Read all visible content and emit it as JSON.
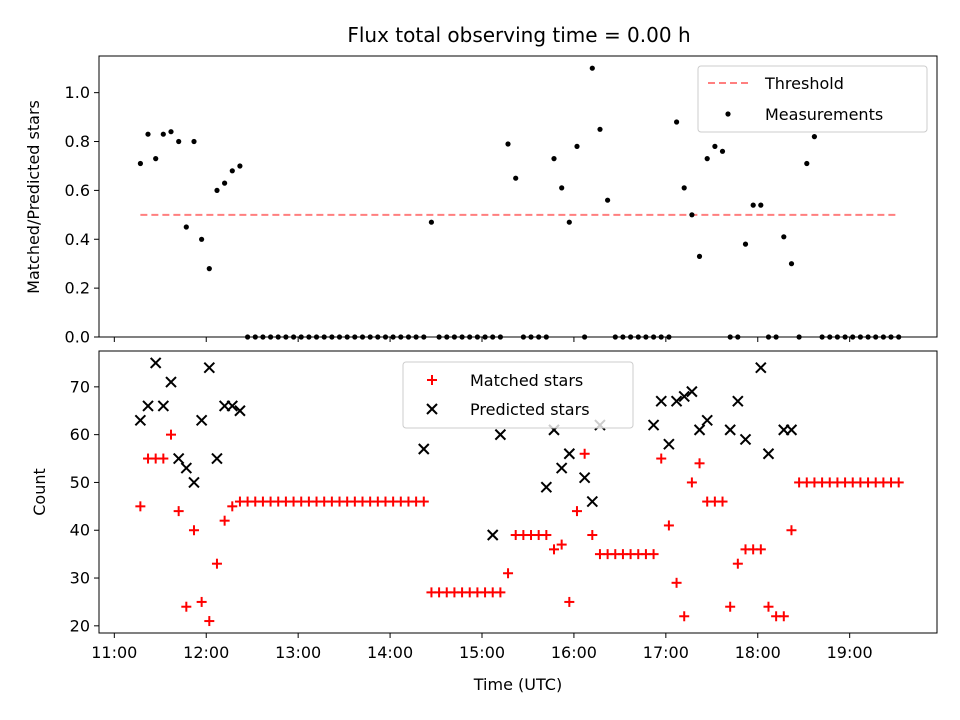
{
  "title": "Flux total observing time = 0.00 h",
  "chart_data": [
    {
      "type": "scatter",
      "ylabel": "Matched/Predicted stars",
      "xlim": [
        "10:50",
        "19:57"
      ],
      "ylim": [
        0,
        1.15
      ],
      "yticks": [
        "0.0",
        "0.2",
        "0.4",
        "0.6",
        "0.8",
        "1.0"
      ],
      "threshold": {
        "name": "Threshold",
        "value": 0.5,
        "x_start": "11:17",
        "x_end": "19:31",
        "color": "#ff7f7f",
        "style": "dashed"
      },
      "series": [
        {
          "name": "Measurements",
          "color": "#000000",
          "marker": "dot",
          "x": [
            "11:17",
            "11:22",
            "11:27",
            "11:32",
            "11:37",
            "11:42",
            "11:47",
            "11:52",
            "11:57",
            "12:02",
            "12:07",
            "12:12",
            "12:17",
            "12:22",
            "12:27",
            "12:32",
            "12:37",
            "12:42",
            "12:47",
            "12:52",
            "12:57",
            "13:02",
            "13:07",
            "13:12",
            "13:17",
            "13:22",
            "13:27",
            "13:32",
            "13:37",
            "13:42",
            "13:47",
            "13:52",
            "13:57",
            "14:02",
            "14:07",
            "14:12",
            "14:17",
            "14:22",
            "14:27",
            "14:32",
            "14:37",
            "14:42",
            "14:47",
            "14:52",
            "14:57",
            "15:02",
            "15:07",
            "15:12",
            "15:17",
            "15:22",
            "15:27",
            "15:32",
            "15:37",
            "15:42",
            "15:47",
            "15:52",
            "15:57",
            "16:02",
            "16:07",
            "16:12",
            "16:17",
            "16:22",
            "16:27",
            "16:32",
            "16:37",
            "16:42",
            "16:47",
            "16:52",
            "16:57",
            "17:02",
            "17:07",
            "17:12",
            "17:17",
            "17:22",
            "17:27",
            "17:32",
            "17:37",
            "17:42",
            "17:47",
            "17:52",
            "17:57",
            "18:02",
            "18:07",
            "18:12",
            "18:17",
            "18:22",
            "18:27",
            "18:32",
            "18:37",
            "18:42",
            "18:47",
            "18:52",
            "18:57",
            "19:02",
            "19:07",
            "19:12",
            "19:17",
            "19:22",
            "19:27",
            "19:32"
          ],
          "y": [
            0.71,
            0.83,
            0.73,
            0.83,
            0.84,
            0.8,
            0.45,
            0.8,
            0.4,
            0.28,
            0.6,
            0.63,
            0.68,
            0.7,
            0,
            0,
            0,
            0,
            0,
            0,
            0,
            0,
            0,
            0,
            0,
            0,
            0,
            0,
            0,
            0,
            0,
            0,
            0,
            0,
            0,
            0,
            0,
            0,
            0.47,
            0,
            0,
            0,
            0,
            0,
            0,
            0,
            0,
            0,
            0.79,
            0.65,
            0,
            0,
            0,
            0,
            0.73,
            0.61,
            0.47,
            0.78,
            0,
            1.1,
            0.85,
            0.56,
            0,
            0,
            0,
            0,
            0,
            0,
            0,
            0,
            0.88,
            0.61,
            0.5,
            0.33,
            0.73,
            0.78,
            0.76,
            0,
            0,
            0.38,
            0.54,
            0.54,
            0,
            0,
            0.41,
            0.3,
            0,
            0.71,
            0.82,
            0,
            0,
            0,
            0,
            0,
            0,
            0,
            0,
            0,
            0,
            0
          ]
        }
      ],
      "legend": {
        "position": "upper right",
        "entries": [
          "Threshold",
          "Measurements"
        ]
      }
    },
    {
      "type": "scatter",
      "xlabel": "Time (UTC)",
      "ylabel": "Count",
      "xlim": [
        "10:50",
        "19:57"
      ],
      "ylim": [
        18.5,
        77.5
      ],
      "yticks": [
        "20",
        "30",
        "40",
        "50",
        "60",
        "70"
      ],
      "xticks": [
        "11:00",
        "12:00",
        "13:00",
        "14:00",
        "15:00",
        "16:00",
        "17:00",
        "18:00",
        "19:00"
      ],
      "series": [
        {
          "name": "Matched stars",
          "color": "#ff0000",
          "marker": "plus",
          "x": [
            "11:17",
            "11:22",
            "11:27",
            "11:32",
            "11:37",
            "11:42",
            "11:47",
            "11:52",
            "11:57",
            "12:02",
            "12:07",
            "12:12",
            "12:17",
            "12:22",
            "12:27",
            "12:32",
            "12:37",
            "12:42",
            "12:47",
            "12:52",
            "12:57",
            "13:02",
            "13:07",
            "13:12",
            "13:17",
            "13:22",
            "13:27",
            "13:32",
            "13:37",
            "13:42",
            "13:47",
            "13:52",
            "13:57",
            "14:02",
            "14:07",
            "14:12",
            "14:17",
            "14:22",
            "14:27",
            "14:32",
            "14:37",
            "14:42",
            "14:47",
            "14:52",
            "14:57",
            "15:02",
            "15:07",
            "15:12",
            "15:17",
            "15:22",
            "15:27",
            "15:32",
            "15:37",
            "15:42",
            "15:47",
            "15:52",
            "15:57",
            "16:02",
            "16:07",
            "16:12",
            "16:17",
            "16:22",
            "16:27",
            "16:32",
            "16:37",
            "16:42",
            "16:47",
            "16:52",
            "16:57",
            "17:02",
            "17:07",
            "17:12",
            "17:17",
            "17:22",
            "17:27",
            "17:32",
            "17:37",
            "17:42",
            "17:47",
            "17:52",
            "17:57",
            "18:02",
            "18:07",
            "18:12",
            "18:17",
            "18:22",
            "18:27",
            "18:32",
            "18:37",
            "18:42",
            "18:47",
            "18:52",
            "18:57",
            "19:02",
            "19:07",
            "19:12",
            "19:17",
            "19:22",
            "19:27",
            "19:32"
          ],
          "y": [
            45,
            55,
            55,
            55,
            60,
            44,
            24,
            40,
            25,
            21,
            33,
            42,
            45,
            46,
            46,
            46,
            46,
            46,
            46,
            46,
            46,
            46,
            46,
            46,
            46,
            46,
            46,
            46,
            46,
            46,
            46,
            46,
            46,
            46,
            46,
            46,
            46,
            46,
            27,
            27,
            27,
            27,
            27,
            27,
            27,
            27,
            27,
            27,
            31,
            39,
            39,
            39,
            39,
            39,
            36,
            37,
            25,
            44,
            56,
            39,
            35,
            35,
            35,
            35,
            35,
            35,
            35,
            35,
            55,
            41,
            29,
            22,
            50,
            54,
            46,
            46,
            46,
            24,
            33,
            36,
            36,
            36,
            24,
            22,
            22,
            40,
            50,
            50,
            50,
            50,
            50,
            50,
            50,
            50,
            50,
            50,
            50,
            50,
            50,
            50
          ]
        },
        {
          "name": "Predicted stars",
          "color": "#000000",
          "marker": "x",
          "x": [
            "11:17",
            "11:22",
            "11:27",
            "11:32",
            "11:37",
            "11:42",
            "11:47",
            "11:52",
            "11:57",
            "12:02",
            "12:07",
            "12:12",
            "12:17",
            "12:22",
            "14:22",
            "15:07",
            "15:12",
            "15:42",
            "15:47",
            "15:52",
            "15:57",
            "16:07",
            "16:12",
            "16:17",
            "16:52",
            "16:57",
            "17:02",
            "17:07",
            "17:12",
            "17:17",
            "17:22",
            "17:27",
            "17:42",
            "17:47",
            "17:52",
            "18:02",
            "18:07",
            "18:17",
            "18:22"
          ],
          "y": [
            63,
            66,
            75,
            66,
            71,
            55,
            53,
            50,
            63,
            74,
            55,
            66,
            66,
            65,
            57,
            39,
            60,
            49,
            61,
            53,
            56,
            51,
            46,
            62,
            62,
            67,
            58,
            67,
            68,
            69,
            61,
            63,
            61,
            67,
            59,
            74,
            56,
            61,
            61
          ]
        }
      ],
      "legend": {
        "position": "upper center",
        "entries": [
          "Matched stars",
          "Predicted stars"
        ]
      }
    }
  ]
}
